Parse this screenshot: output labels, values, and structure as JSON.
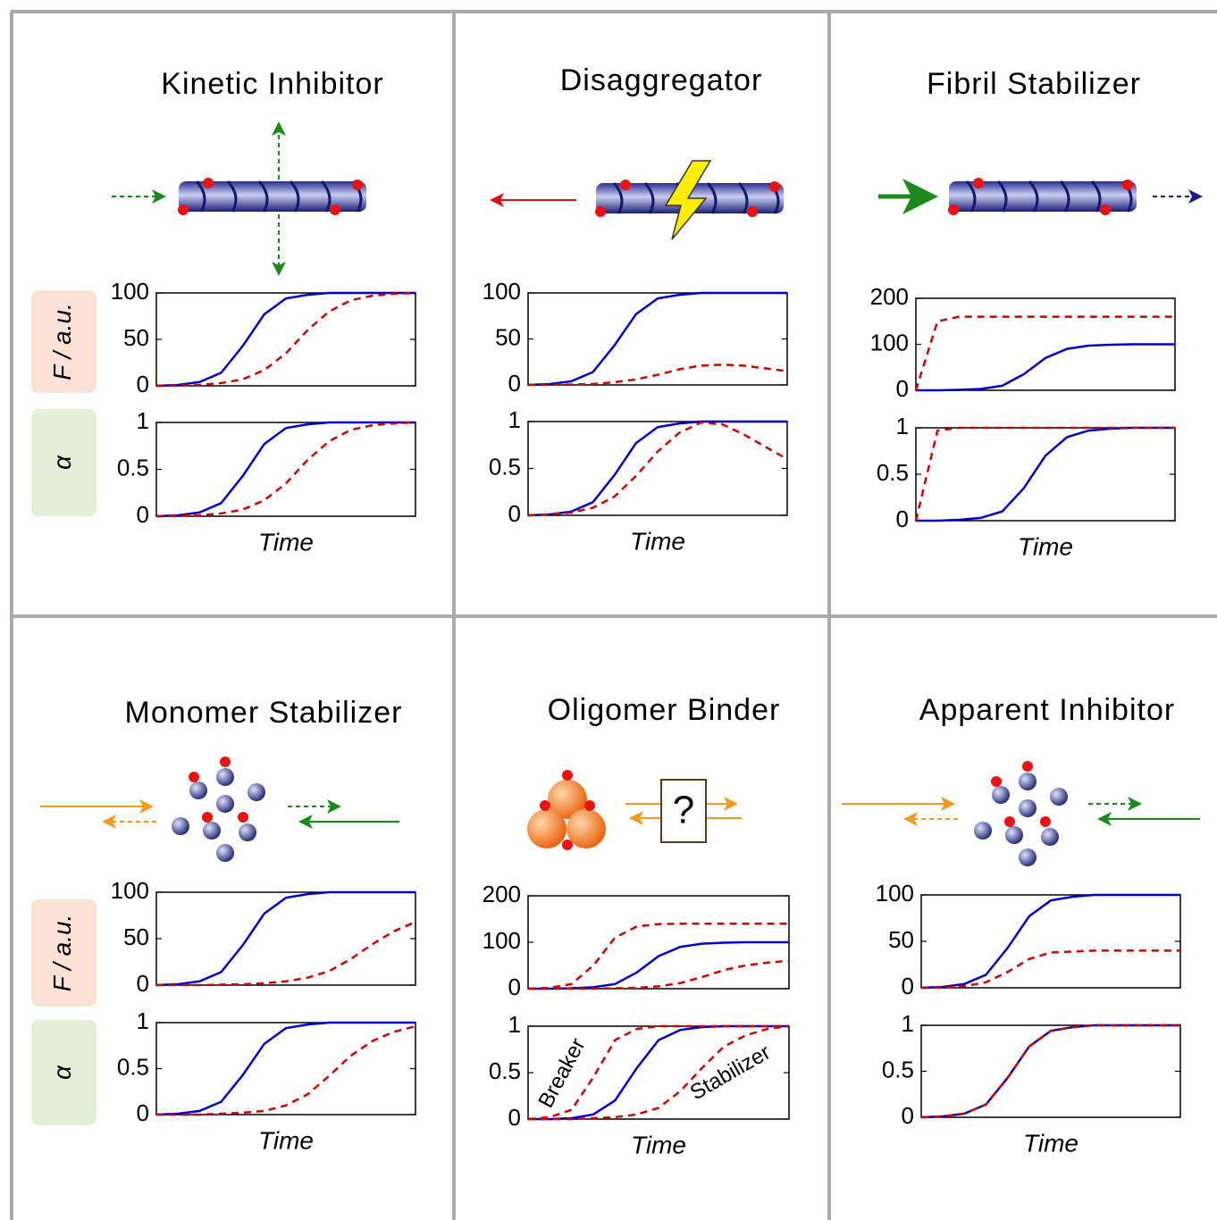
{
  "chart_data": [
    {
      "type": "line",
      "title": "Kinetic Inhibitor",
      "ylabel": "F / a.u.",
      "x": [
        0,
        1,
        2,
        3,
        4,
        5,
        6,
        7,
        8,
        9,
        10,
        11,
        12
      ],
      "xlim": [
        0,
        12
      ],
      "ylim": [
        0,
        100
      ],
      "yticks": [
        0,
        50,
        100
      ],
      "series": [
        {
          "color": "#0000cc",
          "dash": false,
          "values": [
            0,
            1,
            4,
            14,
            43,
            77,
            94,
            98,
            100,
            100,
            100,
            100,
            100
          ]
        },
        {
          "color": "#cc0000",
          "dash": true,
          "values": [
            0,
            0.4,
            1,
            3,
            7,
            17,
            35,
            60,
            80,
            92,
            97,
            99,
            100
          ]
        }
      ]
    },
    {
      "type": "line",
      "ylabel": "α",
      "xlabel": "Time",
      "x": [
        0,
        1,
        2,
        3,
        4,
        5,
        6,
        7,
        8,
        9,
        10,
        11,
        12
      ],
      "xlim": [
        0,
        12
      ],
      "ylim": [
        0,
        1
      ],
      "yticks": [
        0,
        0.5,
        1
      ],
      "series": [
        {
          "color": "#0000cc",
          "dash": false,
          "values": [
            0,
            0.01,
            0.04,
            0.14,
            0.43,
            0.77,
            0.94,
            0.98,
            1,
            1,
            1,
            1,
            1
          ]
        },
        {
          "color": "#cc0000",
          "dash": true,
          "values": [
            0,
            0.004,
            0.01,
            0.03,
            0.07,
            0.17,
            0.35,
            0.6,
            0.8,
            0.92,
            0.97,
            0.99,
            1
          ]
        }
      ]
    },
    {
      "type": "line",
      "title": "Disaggregator",
      "x": [
        0,
        1,
        2,
        3,
        4,
        5,
        6,
        7,
        8,
        9,
        10,
        11,
        12
      ],
      "xlim": [
        0,
        12
      ],
      "ylim": [
        0,
        100
      ],
      "yticks": [
        0,
        50,
        100
      ],
      "series": [
        {
          "color": "#0000cc",
          "dash": false,
          "values": [
            0,
            1,
            4,
            14,
            43,
            77,
            94,
            98,
            100,
            100,
            100,
            100,
            100
          ]
        },
        {
          "color": "#cc0000",
          "dash": true,
          "values": [
            0,
            0,
            0.5,
            1,
            3,
            6,
            11,
            17,
            21,
            22,
            21,
            18,
            15
          ]
        }
      ]
    },
    {
      "type": "line",
      "xlabel": "Time",
      "x": [
        0,
        1,
        2,
        3,
        4,
        5,
        6,
        7,
        8,
        9,
        10,
        11,
        12
      ],
      "xlim": [
        0,
        12
      ],
      "ylim": [
        0,
        1
      ],
      "yticks": [
        0,
        0.5,
        1
      ],
      "series": [
        {
          "color": "#0000cc",
          "dash": false,
          "values": [
            0,
            0.01,
            0.04,
            0.14,
            0.43,
            0.77,
            0.94,
            0.98,
            1,
            1,
            1,
            1,
            1
          ]
        },
        {
          "color": "#cc0000",
          "dash": true,
          "values": [
            0,
            0.01,
            0.03,
            0.08,
            0.2,
            0.42,
            0.68,
            0.88,
            0.99,
            0.97,
            0.86,
            0.73,
            0.6
          ]
        }
      ]
    },
    {
      "type": "line",
      "title": "Fibril Stabilizer",
      "x": [
        0,
        1,
        2,
        3,
        4,
        5,
        6,
        7,
        8,
        9,
        10,
        11,
        12
      ],
      "xlim": [
        0,
        12
      ],
      "ylim": [
        0,
        200
      ],
      "yticks": [
        0,
        100,
        200
      ],
      "series": [
        {
          "color": "#0000cc",
          "dash": false,
          "values": [
            0,
            0,
            1,
            3,
            10,
            35,
            70,
            90,
            97,
            99,
            100,
            100,
            100
          ]
        },
        {
          "color": "#cc0000",
          "dash": true,
          "values": [
            0,
            150,
            160,
            160,
            160,
            160,
            160,
            160,
            160,
            160,
            160,
            160,
            160
          ]
        }
      ]
    },
    {
      "type": "line",
      "xlabel": "Time",
      "x": [
        0,
        1,
        2,
        3,
        4,
        5,
        6,
        7,
        8,
        9,
        10,
        11,
        12
      ],
      "xlim": [
        0,
        12
      ],
      "ylim": [
        0,
        1
      ],
      "yticks": [
        0,
        0.5,
        1
      ],
      "series": [
        {
          "color": "#0000cc",
          "dash": false,
          "values": [
            0,
            0,
            0.01,
            0.03,
            0.1,
            0.35,
            0.7,
            0.9,
            0.97,
            0.99,
            1,
            1,
            1
          ]
        },
        {
          "color": "#cc0000",
          "dash": true,
          "values": [
            0,
            0.97,
            1,
            1,
            1,
            1,
            1,
            1,
            1,
            1,
            1,
            1,
            1
          ]
        }
      ]
    },
    {
      "type": "line",
      "title": "Monomer Stabilizer",
      "ylabel": "F / a.u.",
      "x": [
        0,
        1,
        2,
        3,
        4,
        5,
        6,
        7,
        8,
        9,
        10,
        11,
        12
      ],
      "xlim": [
        0,
        12
      ],
      "ylim": [
        0,
        100
      ],
      "yticks": [
        0,
        50,
        100
      ],
      "series": [
        {
          "color": "#0000cc",
          "dash": false,
          "values": [
            0,
            1,
            4,
            14,
            43,
            77,
            94,
            98,
            100,
            100,
            100,
            100,
            100
          ]
        },
        {
          "color": "#cc0000",
          "dash": true,
          "values": [
            0,
            0,
            0,
            0.5,
            1,
            2,
            4,
            8,
            15,
            28,
            44,
            58,
            68
          ]
        }
      ]
    },
    {
      "type": "line",
      "ylabel": "α",
      "xlabel": "Time",
      "x": [
        0,
        1,
        2,
        3,
        4,
        5,
        6,
        7,
        8,
        9,
        10,
        11,
        12
      ],
      "xlim": [
        0,
        12
      ],
      "ylim": [
        0,
        1
      ],
      "yticks": [
        0,
        0.5,
        1
      ],
      "series": [
        {
          "color": "#0000cc",
          "dash": false,
          "values": [
            0,
            0.01,
            0.04,
            0.14,
            0.43,
            0.77,
            0.94,
            0.98,
            1,
            1,
            1,
            1,
            1
          ]
        },
        {
          "color": "#cc0000",
          "dash": true,
          "values": [
            0,
            0,
            0,
            0.01,
            0.02,
            0.04,
            0.1,
            0.22,
            0.42,
            0.64,
            0.8,
            0.9,
            0.96
          ]
        }
      ]
    },
    {
      "type": "line",
      "title": "Oligomer Binder",
      "x": [
        0,
        1,
        2,
        3,
        4,
        5,
        6,
        7,
        8,
        9,
        10,
        11,
        12
      ],
      "xlim": [
        0,
        12
      ],
      "ylim": [
        0,
        200
      ],
      "yticks": [
        0,
        100,
        200
      ],
      "series": [
        {
          "color": "#0000cc",
          "dash": false,
          "values": [
            0,
            0,
            1,
            3,
            10,
            35,
            70,
            90,
            97,
            99,
            100,
            100,
            100
          ]
        },
        {
          "color": "#cc0000",
          "dash": true,
          "values": [
            0,
            2,
            10,
            50,
            110,
            134,
            139,
            140,
            140,
            140,
            140,
            140,
            140
          ]
        },
        {
          "color": "#cc0000",
          "dash": true,
          "values": [
            0,
            0,
            0,
            0,
            1,
            2,
            5,
            12,
            25,
            40,
            50,
            56,
            60
          ]
        }
      ]
    },
    {
      "type": "line",
      "xlabel": "Time",
      "annotations": [
        "Breaker",
        "Stabilizer"
      ],
      "x": [
        0,
        1,
        2,
        3,
        4,
        5,
        6,
        7,
        8,
        9,
        10,
        11,
        12
      ],
      "xlim": [
        0,
        12
      ],
      "ylim": [
        0,
        1
      ],
      "yticks": [
        0,
        0.5,
        1
      ],
      "series": [
        {
          "color": "#0000cc",
          "dash": false,
          "values": [
            0,
            0,
            0.01,
            0.05,
            0.2,
            0.55,
            0.85,
            0.96,
            0.99,
            1,
            1,
            1,
            1
          ]
        },
        {
          "color": "#cc0000",
          "dash": true,
          "values": [
            0,
            0.02,
            0.1,
            0.45,
            0.85,
            0.97,
            1,
            1,
            1,
            1,
            1,
            1,
            1
          ]
        },
        {
          "color": "#cc0000",
          "dash": true,
          "values": [
            0,
            0,
            0,
            0.01,
            0.02,
            0.05,
            0.12,
            0.3,
            0.55,
            0.78,
            0.9,
            0.97,
            1
          ]
        }
      ]
    },
    {
      "type": "line",
      "title": "Apparent Inhibitor",
      "x": [
        0,
        1,
        2,
        3,
        4,
        5,
        6,
        7,
        8,
        9,
        10,
        11,
        12
      ],
      "xlim": [
        0,
        12
      ],
      "ylim": [
        0,
        100
      ],
      "yticks": [
        0,
        50,
        100
      ],
      "series": [
        {
          "color": "#0000cc",
          "dash": false,
          "values": [
            0,
            1,
            4,
            14,
            43,
            77,
            94,
            98,
            100,
            100,
            100,
            100,
            100
          ]
        },
        {
          "color": "#cc0000",
          "dash": true,
          "values": [
            0,
            0.4,
            1.6,
            6,
            17,
            31,
            38,
            39,
            40,
            40,
            40,
            40,
            40
          ]
        }
      ]
    },
    {
      "type": "line",
      "xlabel": "Time",
      "x": [
        0,
        1,
        2,
        3,
        4,
        5,
        6,
        7,
        8,
        9,
        10,
        11,
        12
      ],
      "xlim": [
        0,
        12
      ],
      "ylim": [
        0,
        1
      ],
      "yticks": [
        0,
        0.5,
        1
      ],
      "series": [
        {
          "color": "#0000cc",
          "dash": false,
          "values": [
            0,
            0.01,
            0.04,
            0.14,
            0.43,
            0.77,
            0.94,
            0.98,
            1,
            1,
            1,
            1,
            1
          ]
        },
        {
          "color": "#cc0000",
          "dash": true,
          "values": [
            0,
            0.01,
            0.04,
            0.14,
            0.43,
            0.77,
            0.94,
            0.98,
            1,
            1,
            1,
            1,
            1
          ]
        }
      ]
    }
  ]
}
